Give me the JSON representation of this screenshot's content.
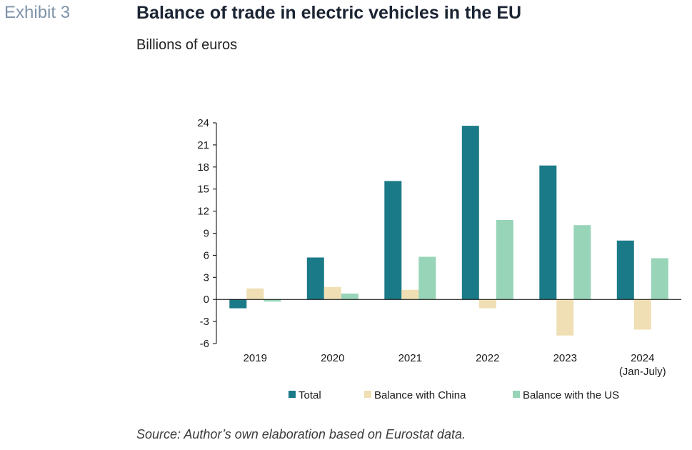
{
  "header": {
    "exhibit": "Exhibit 3",
    "title": "Balance of trade in electric vehicles in the EU",
    "subtitle": "Billions of euros"
  },
  "footer": {
    "source": "Source: Author’s own elaboration based on Eurostat data."
  },
  "chart_data": {
    "type": "bar",
    "categories": [
      "2019",
      "2020",
      "2021",
      "2022",
      "2023",
      "2024\n(Jan-July)"
    ],
    "series": [
      {
        "name": "Total",
        "color": "#1b7a87",
        "values": [
          -1.2,
          5.7,
          16.1,
          23.6,
          18.2,
          8.0
        ]
      },
      {
        "name": "Balance with China",
        "color": "#f0dfb4",
        "values": [
          1.5,
          1.7,
          1.3,
          -1.2,
          -4.9,
          -4.1
        ]
      },
      {
        "name": "Balance with the US",
        "color": "#97d4b8",
        "values": [
          -0.3,
          0.8,
          5.8,
          10.8,
          10.1,
          5.6
        ]
      }
    ],
    "ylim": [
      -6,
      24
    ],
    "yticks": [
      24,
      21,
      18,
      15,
      12,
      9,
      6,
      3,
      0,
      -3,
      -6
    ],
    "grid": false,
    "legend_position": "bottom"
  }
}
